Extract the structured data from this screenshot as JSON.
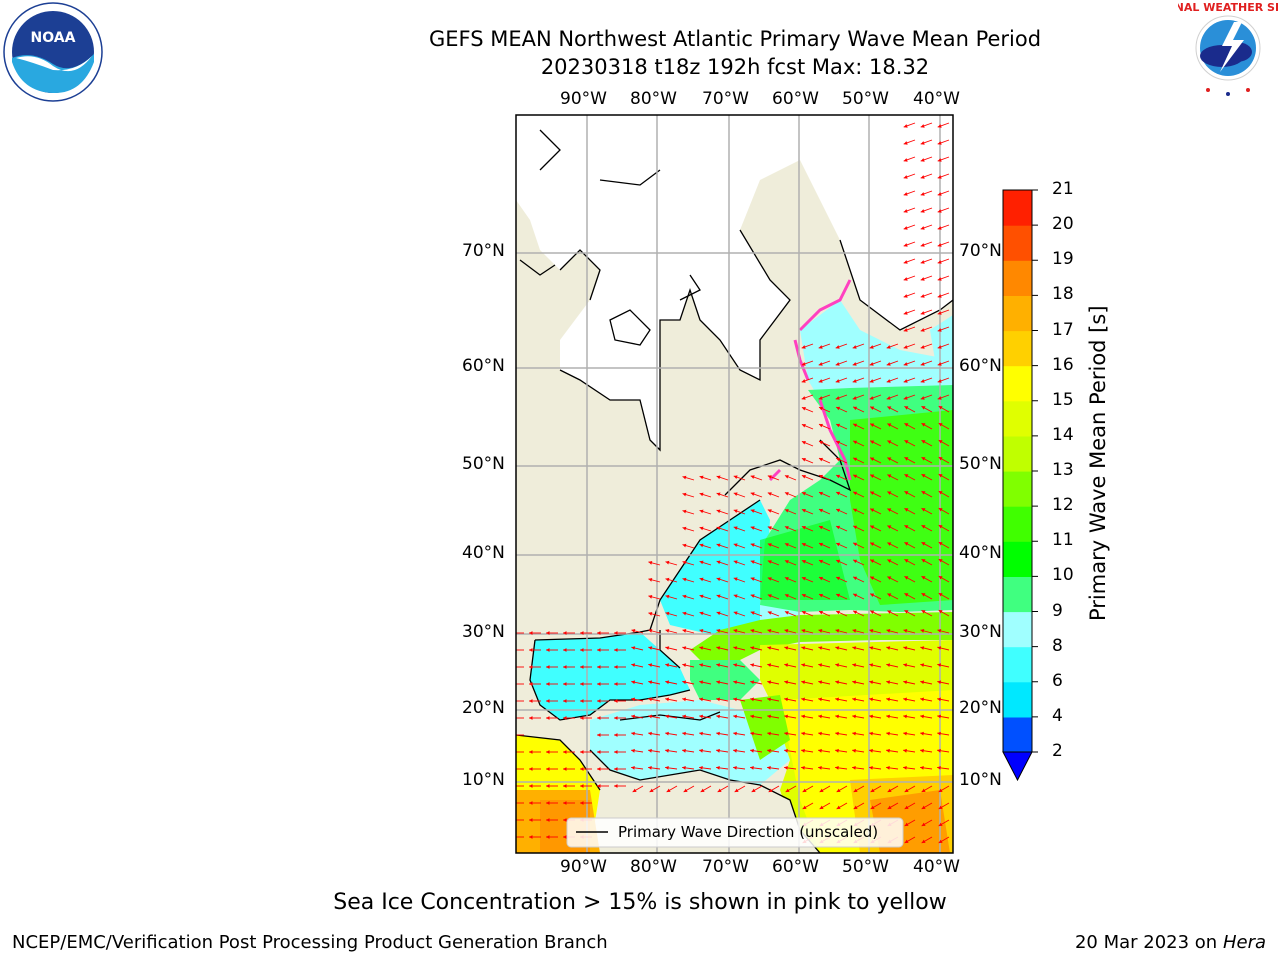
{
  "header": {
    "title_line1": "GEFS MEAN Northwest Atlantic Primary Wave Mean Period",
    "title_line2": "20230318 t18z 192h fcst   Max: 18.32"
  },
  "logos": {
    "left": "noaa-logo",
    "left_text": "NOAA",
    "right": "national-weather-service-logo",
    "right_text": "NATIONAL WEATHER SERVICE"
  },
  "map": {
    "lon_labels": [
      "90°W",
      "80°W",
      "70°W",
      "60°W",
      "50°W",
      "40°W"
    ],
    "lon_values": [
      -90,
      -80,
      -70,
      -60,
      -50,
      -40
    ],
    "lat_labels": [
      "70°N",
      "60°N",
      "50°N",
      "40°N",
      "30°N",
      "20°N",
      "10°N"
    ],
    "lat_values": [
      70,
      60,
      50,
      40,
      30,
      20,
      10
    ],
    "legend_label": "Primary Wave Direction (unscaled)",
    "colors": {
      "land": "#efedda",
      "ocean_ice": "#ffffff",
      "grid": "#b0b0b0",
      "arrow": "#ff0000",
      "ice_edge": "#ff40c0"
    }
  },
  "colorbar": {
    "label": "Primary Wave Mean Period [s]",
    "ticks": [
      "2",
      "4",
      "6",
      "8",
      "9",
      "10",
      "11",
      "12",
      "13",
      "14",
      "15",
      "16",
      "17",
      "18",
      "19",
      "20",
      "21"
    ],
    "levels": [
      2,
      4,
      6,
      8,
      9,
      10,
      11,
      12,
      13,
      14,
      15,
      16,
      17,
      18,
      19,
      20,
      21
    ],
    "colors": [
      "#0050ff",
      "#00e8ff",
      "#40ffff",
      "#a0ffff",
      "#40ff80",
      "#00ff00",
      "#40ff00",
      "#80ff00",
      "#c0ff00",
      "#e0ff00",
      "#ffff00",
      "#ffd000",
      "#ffb000",
      "#ff8800",
      "#ff5000",
      "#ff2000"
    ],
    "under_color": "#0000ff",
    "range": [
      2,
      21
    ]
  },
  "caption": "Sea Ice Concentration > 15% is shown in pink to yellow",
  "footer": {
    "left": "NCEP/EMC/Verification Post Processing Product Generation Branch",
    "right_date": "20 Mar 2023 on",
    "right_host": "Hera"
  }
}
